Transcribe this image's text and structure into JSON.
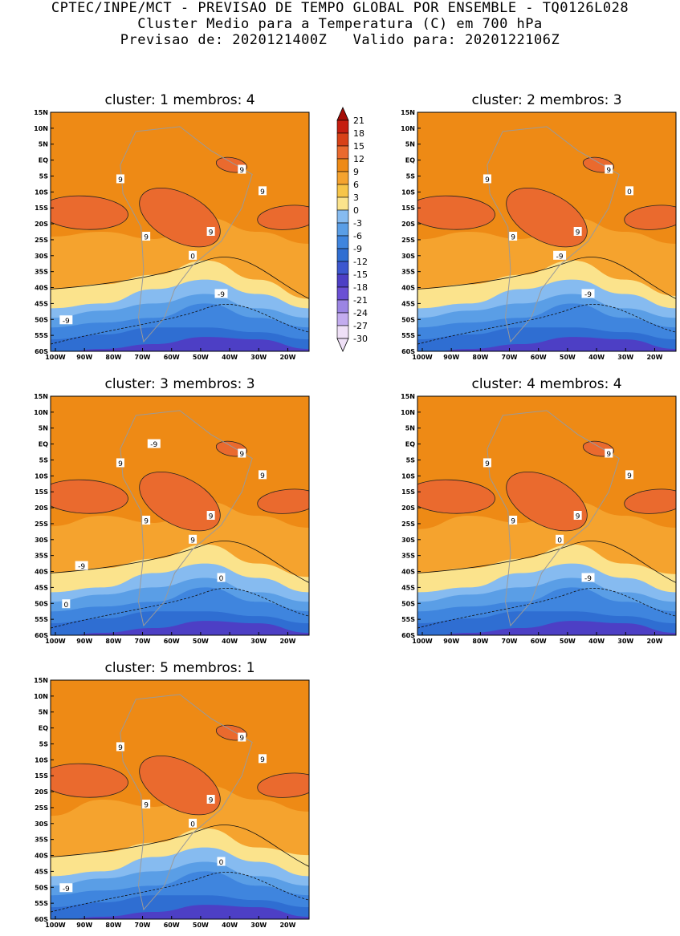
{
  "header": {
    "line1": "CPTEC/INPE/MCT - PREVISAO DE TEMPO GLOBAL POR ENSEMBLE - TQ0126L028",
    "line2": "Cluster Medio para a Temperatura (C) em 700 hPa",
    "line3": "Previsao de: 2020121400Z   Valido para: 2020122106Z"
  },
  "colors": {
    "background": "#ffffff",
    "levels": [
      "#efe0f7",
      "#c3acef",
      "#9b85e3",
      "#6a4fd4",
      "#4d3fc5",
      "#3c57cf",
      "#2f6ed2",
      "#3f85de",
      "#5a9ee6",
      "#86bbf0",
      "#fbe38c",
      "#f7c548",
      "#f5a32e",
      "#ee8a15",
      "#ea6a2e",
      "#d84117",
      "#c51e10",
      "#a50c06"
    ],
    "continent_outline": "#9a9a9a"
  },
  "legend": {
    "labels": [
      "21",
      "18",
      "15",
      "12",
      "9",
      "6",
      "3",
      "0",
      "-3",
      "-6",
      "-9",
      "-12",
      "-15",
      "-18",
      "-21",
      "-24",
      "-27",
      "-30"
    ]
  },
  "axes": {
    "lat_ticks": [
      "15N",
      "10N",
      "5N",
      "EQ",
      "5S",
      "10S",
      "15S",
      "20S",
      "25S",
      "30S",
      "35S",
      "40S",
      "45S",
      "50S",
      "55S",
      "60S"
    ],
    "lon_ticks": [
      "100W",
      "90W",
      "80W",
      "70W",
      "60W",
      "50W",
      "40W",
      "30W",
      "20W"
    ]
  },
  "panels": [
    {
      "title": "cluster: 1   membros: 4",
      "contour_labels": [
        "9",
        "9",
        "9",
        "9",
        "9",
        "0",
        "-9",
        "-9"
      ]
    },
    {
      "title": "cluster: 2   membros: 3",
      "contour_labels": [
        "9",
        "9",
        "9",
        "9",
        "0",
        "-9",
        "-9"
      ]
    },
    {
      "title": "cluster: 3   membros: 3",
      "contour_labels": [
        "9",
        "9",
        "9",
        "9",
        "9",
        "9",
        "0",
        "0",
        "-9",
        "-9"
      ]
    },
    {
      "title": "cluster: 4   membros: 4",
      "contour_labels": [
        "9",
        "9",
        "9",
        "9",
        "9",
        "0",
        "-9"
      ]
    },
    {
      "title": "cluster: 5   membros: 1",
      "contour_labels": [
        "9",
        "9",
        "9",
        "9",
        "9",
        "0",
        "0",
        "-9"
      ]
    }
  ]
}
